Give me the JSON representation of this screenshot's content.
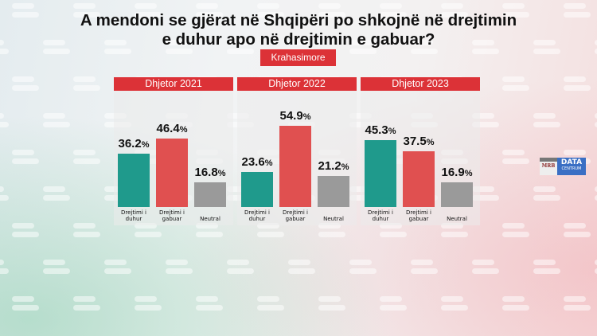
{
  "watermark": "euro news.",
  "title_line1": "A mendoni se gjërat në Shqipëri po shkojnë në drejtimin",
  "title_line2": "e duhur apo në drejtimin e gabuar?",
  "subtitle": "Krahasimore",
  "logo": {
    "left": "MRB",
    "main": "DATA",
    "sub": "CENTRUM"
  },
  "colors": {
    "header": "#dc3237",
    "series": [
      "#1f9a8c",
      "#e05050",
      "#9a9a9a"
    ]
  },
  "chart_data": [
    {
      "type": "bar",
      "title": "Dhjetor 2021",
      "categories": [
        "Drejtimi i duhur",
        "Drejtimi i gabuar",
        "Neutral"
      ],
      "values": [
        36.2,
        46.4,
        16.8
      ],
      "unit": "%"
    },
    {
      "type": "bar",
      "title": "Dhjetor 2022",
      "categories": [
        "Drejtimi i duhur",
        "Drejtimi i gabuar",
        "Neutral"
      ],
      "values": [
        23.6,
        54.9,
        21.2
      ],
      "unit": "%"
    },
    {
      "type": "bar",
      "title": "Dhjetor 2023",
      "categories": [
        "Drejtimi i duhur",
        "Drejtimi i gabuar",
        "Neutral"
      ],
      "values": [
        45.3,
        37.5,
        16.9
      ],
      "unit": "%"
    }
  ]
}
